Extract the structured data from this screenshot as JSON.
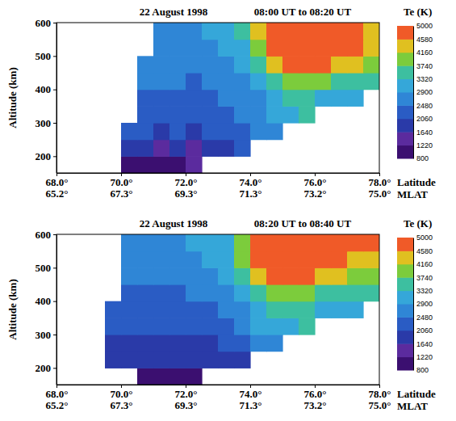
{
  "chart_data": [
    {
      "type": "heatmap",
      "title": "22 August 1998",
      "subtitle": "08:00 UT to 08:20 UT",
      "xlabel": "Latitude",
      "x2label": "MLAT",
      "ylabel": "Altitude (km)",
      "xlim": [
        68,
        78
      ],
      "xticks": [
        {
          "value": 68,
          "label": "68.0°"
        },
        {
          "value": 70,
          "label": "70.0°"
        },
        {
          "value": 72,
          "label": "72.0°"
        },
        {
          "value": 74,
          "label": "74.0°"
        },
        {
          "value": 76,
          "label": "76.0°"
        },
        {
          "value": 78,
          "label": "78.0°"
        }
      ],
      "x2lim": [
        65.2,
        75.0
      ],
      "x2ticks": [
        {
          "value": 65.2,
          "label": "65.2°"
        },
        {
          "value": 67.3,
          "label": "67.3°"
        },
        {
          "value": 69.3,
          "label": "69.3°"
        },
        {
          "value": 71.3,
          "label": "71.3°"
        },
        {
          "value": 73.2,
          "label": "73.2°"
        },
        {
          "value": 75.0,
          "label": "75.0°"
        }
      ],
      "ylim": [
        150,
        600
      ],
      "yticks": [
        200,
        300,
        400,
        500,
        600
      ],
      "x": [
        69.75,
        70.25,
        70.75,
        71.25,
        71.75,
        72.25,
        72.75,
        73.25,
        73.75,
        74.25,
        74.75,
        75.25,
        75.75,
        76.25,
        76.75,
        77.25,
        77.75
      ],
      "y": [
        175,
        225,
        275,
        325,
        375,
        425,
        475,
        525,
        575
      ],
      "cells": [
        [
          null,
          1100,
          1000,
          1200,
          1000,
          1300,
          null,
          null,
          null,
          null,
          null,
          null,
          null,
          null,
          null,
          null,
          null
        ],
        [
          null,
          1700,
          1800,
          1600,
          1700,
          1500,
          1800,
          1900,
          2100,
          null,
          null,
          null,
          null,
          null,
          null,
          null,
          null
        ],
        [
          null,
          2100,
          2100,
          2000,
          2100,
          2000,
          2100,
          2200,
          2300,
          2500,
          2800,
          null,
          null,
          null,
          null,
          null,
          null
        ],
        [
          null,
          null,
          2200,
          2300,
          2200,
          2300,
          2300,
          2400,
          2500,
          2700,
          3000,
          3300,
          3500,
          null,
          null,
          null,
          null
        ],
        [
          null,
          null,
          2400,
          2400,
          2400,
          2300,
          2400,
          2500,
          2600,
          2800,
          3300,
          3600,
          3400,
          3300,
          3200,
          3300,
          null
        ],
        [
          null,
          null,
          2500,
          2500,
          2500,
          2400,
          2500,
          2600,
          2800,
          3100,
          3700,
          4000,
          3900,
          3800,
          3700,
          3600,
          3500
        ],
        [
          null,
          null,
          2600,
          2600,
          2500,
          2500,
          2600,
          2800,
          3000,
          3500,
          4300,
          4700,
          4800,
          4600,
          4400,
          4200,
          3900
        ],
        [
          null,
          null,
          null,
          2700,
          2600,
          2600,
          2700,
          2900,
          3200,
          3900,
          4800,
          5000,
          5000,
          4900,
          4800,
          4600,
          4300
        ],
        [
          null,
          null,
          null,
          2700,
          2700,
          2800,
          2900,
          3100,
          3500,
          4200,
          4900,
          5000,
          5000,
          5000,
          4900,
          4700,
          4500
        ]
      ],
      "colorbar": {
        "title": "Te (K)",
        "range": [
          800,
          5000
        ],
        "ticks": [
          800,
          1220,
          1640,
          2060,
          2480,
          2900,
          3320,
          3740,
          4160,
          4580,
          5000
        ],
        "colors": [
          "#3b0f70",
          "#5b2b9e",
          "#2a3aa8",
          "#2a5cc4",
          "#2f86d6",
          "#35a7d9",
          "#3dbfa0",
          "#7ccc3c",
          "#e0c020",
          "#f05a28"
        ]
      }
    },
    {
      "type": "heatmap",
      "title": "22 August 1998",
      "subtitle": "08:20 UT to 08:40 UT",
      "xlabel": "Latitude",
      "x2label": "MLAT",
      "ylabel": "Altitude (km)",
      "xlim": [
        68,
        78
      ],
      "xticks": [
        {
          "value": 68,
          "label": "68.0°"
        },
        {
          "value": 70,
          "label": "70.0°"
        },
        {
          "value": 72,
          "label": "72.0°"
        },
        {
          "value": 74,
          "label": "74.0°"
        },
        {
          "value": 76,
          "label": "76.0°"
        },
        {
          "value": 78,
          "label": "78.0°"
        }
      ],
      "x2lim": [
        65.2,
        75.0
      ],
      "x2ticks": [
        {
          "value": 65.2,
          "label": "65.2°"
        },
        {
          "value": 67.3,
          "label": "67.3°"
        },
        {
          "value": 69.3,
          "label": "69.3°"
        },
        {
          "value": 71.3,
          "label": "71.3°"
        },
        {
          "value": 73.2,
          "label": "73.2°"
        },
        {
          "value": 75.0,
          "label": "75.0°"
        }
      ],
      "ylim": [
        150,
        600
      ],
      "yticks": [
        200,
        300,
        400,
        500,
        600
      ],
      "x": [
        69.75,
        70.25,
        70.75,
        71.25,
        71.75,
        72.25,
        72.75,
        73.25,
        73.75,
        74.25,
        74.75,
        75.25,
        75.75,
        76.25,
        76.75,
        77.25,
        77.75
      ],
      "y": [
        175,
        225,
        275,
        325,
        375,
        425,
        475,
        525,
        575
      ],
      "cells": [
        [
          null,
          null,
          1100,
          1200,
          1000,
          1100,
          null,
          null,
          null,
          null,
          null,
          null,
          null,
          null,
          null,
          null,
          null
        ],
        [
          1900,
          1800,
          1800,
          1800,
          1700,
          1700,
          1800,
          1900,
          2000,
          null,
          null,
          null,
          null,
          null,
          null,
          null,
          null
        ],
        [
          1900,
          1900,
          1900,
          1900,
          1900,
          1900,
          2000,
          2100,
          2200,
          2500,
          2800,
          null,
          null,
          null,
          null,
          null,
          null
        ],
        [
          2100,
          2200,
          2200,
          2200,
          2200,
          2300,
          2300,
          2400,
          2600,
          2900,
          3200,
          3300,
          3400,
          null,
          null,
          null,
          null
        ],
        [
          2200,
          2300,
          2300,
          2300,
          2300,
          2400,
          2400,
          2600,
          2800,
          3200,
          3600,
          3500,
          3400,
          3300,
          3200,
          3300,
          null
        ],
        [
          null,
          2400,
          2400,
          2400,
          2400,
          2500,
          2500,
          2700,
          3000,
          3600,
          4100,
          4000,
          3800,
          3700,
          3700,
          3600,
          3500
        ],
        [
          null,
          2500,
          2500,
          2500,
          2500,
          2600,
          2700,
          2900,
          3400,
          4200,
          4700,
          4800,
          4700,
          4500,
          4300,
          4100,
          3800
        ],
        [
          null,
          2600,
          2600,
          2600,
          2700,
          2700,
          2900,
          3100,
          3800,
          4700,
          5000,
          5000,
          4900,
          4800,
          4600,
          4400,
          4200
        ],
        [
          null,
          2700,
          2700,
          2700,
          2800,
          2900,
          3000,
          3300,
          4100,
          4900,
          5000,
          5000,
          5000,
          4900,
          4800,
          4700,
          4600
        ]
      ],
      "colorbar": {
        "title": "Te (K)",
        "range": [
          800,
          5000
        ],
        "ticks": [
          800,
          1220,
          1640,
          2060,
          2480,
          2900,
          3320,
          3740,
          4160,
          4580,
          5000
        ],
        "colors": [
          "#3b0f70",
          "#5b2b9e",
          "#2a3aa8",
          "#2a5cc4",
          "#2f86d6",
          "#35a7d9",
          "#3dbfa0",
          "#7ccc3c",
          "#e0c020",
          "#f05a28"
        ]
      }
    }
  ]
}
